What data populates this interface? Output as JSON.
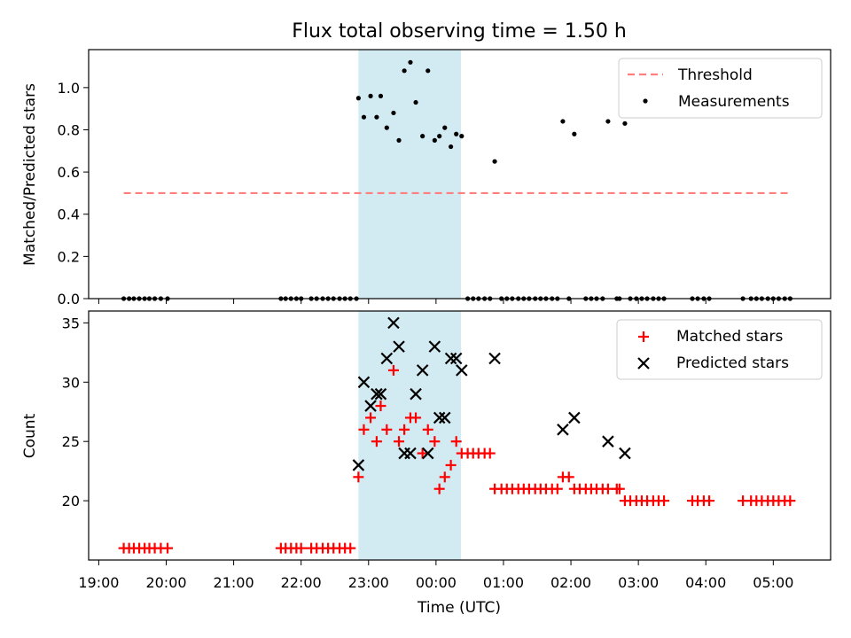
{
  "chart_data": {
    "title": "Flux total observing time = 1.50 h",
    "xlabel": "Time (UTC)",
    "x_ticks": [
      "19:00",
      "20:00",
      "21:00",
      "22:00",
      "23:00",
      "00:00",
      "01:00",
      "02:00",
      "03:00",
      "04:00",
      "05:00"
    ],
    "shaded_region": {
      "start_h": 22.85,
      "end_h": 24.37,
      "color": "#add8e6"
    },
    "panels": [
      {
        "type": "scatter",
        "ylabel": "Matched/Predicted stars",
        "ylim": [
          0,
          1.18
        ],
        "y_ticks": [
          "0.0",
          "0.2",
          "0.4",
          "0.6",
          "0.8",
          "1.0"
        ],
        "legend_position": "top-right",
        "legend": [
          {
            "label": "Threshold",
            "style": "dashed-line",
            "color": "#ff7f7f"
          },
          {
            "label": "Measurements",
            "style": "dot",
            "color": "#000000"
          }
        ],
        "threshold": {
          "value": 0.5,
          "x_start_h": 19.37,
          "x_end_h": 29.25
        },
        "series": [
          {
            "name": "Measurements",
            "points": [
              [
                19.37,
                0
              ],
              [
                19.45,
                0
              ],
              [
                19.52,
                0
              ],
              [
                19.6,
                0
              ],
              [
                19.68,
                0
              ],
              [
                19.75,
                0
              ],
              [
                19.83,
                0
              ],
              [
                19.92,
                0
              ],
              [
                20.02,
                0
              ],
              [
                21.7,
                0
              ],
              [
                21.77,
                0
              ],
              [
                21.85,
                0
              ],
              [
                21.93,
                0
              ],
              [
                22.0,
                0
              ],
              [
                22.15,
                0
              ],
              [
                22.23,
                0
              ],
              [
                22.32,
                0
              ],
              [
                22.4,
                0
              ],
              [
                22.48,
                0
              ],
              [
                22.57,
                0
              ],
              [
                22.65,
                0
              ],
              [
                22.73,
                0
              ],
              [
                22.82,
                0
              ],
              [
                22.85,
                0.95
              ],
              [
                22.93,
                0.86
              ],
              [
                23.03,
                0.96
              ],
              [
                23.12,
                0.86
              ],
              [
                23.18,
                0.96
              ],
              [
                23.27,
                0.81
              ],
              [
                23.37,
                0.88
              ],
              [
                23.45,
                0.75
              ],
              [
                23.53,
                1.08
              ],
              [
                23.62,
                1.12
              ],
              [
                23.7,
                0.93
              ],
              [
                23.8,
                0.77
              ],
              [
                23.88,
                1.08
              ],
              [
                23.98,
                0.75
              ],
              [
                24.05,
                0.77
              ],
              [
                24.13,
                0.81
              ],
              [
                24.22,
                0.72
              ],
              [
                24.3,
                0.78
              ],
              [
                24.38,
                0.77
              ],
              [
                24.47,
                0
              ],
              [
                24.55,
                0
              ],
              [
                24.63,
                0
              ],
              [
                24.72,
                0
              ],
              [
                24.8,
                0
              ],
              [
                24.87,
                0.65
              ],
              [
                24.97,
                0
              ],
              [
                25.05,
                0
              ],
              [
                25.13,
                0
              ],
              [
                25.22,
                0
              ],
              [
                25.3,
                0
              ],
              [
                25.38,
                0
              ],
              [
                25.47,
                0
              ],
              [
                25.55,
                0
              ],
              [
                25.63,
                0
              ],
              [
                25.72,
                0
              ],
              [
                25.8,
                0
              ],
              [
                25.88,
                0.84
              ],
              [
                25.97,
                0
              ],
              [
                26.05,
                0.78
              ],
              [
                26.22,
                0
              ],
              [
                26.3,
                0
              ],
              [
                26.38,
                0
              ],
              [
                26.47,
                0
              ],
              [
                26.55,
                0.84
              ],
              [
                26.68,
                0
              ],
              [
                26.72,
                0
              ],
              [
                26.8,
                0.83
              ],
              [
                26.88,
                0
              ],
              [
                26.97,
                0
              ],
              [
                27.05,
                0
              ],
              [
                27.13,
                0
              ],
              [
                27.22,
                0
              ],
              [
                27.3,
                0
              ],
              [
                27.38,
                0
              ],
              [
                27.8,
                0
              ],
              [
                27.88,
                0
              ],
              [
                27.97,
                0
              ],
              [
                28.05,
                0
              ],
              [
                28.55,
                0
              ],
              [
                28.67,
                0
              ],
              [
                28.75,
                0
              ],
              [
                28.83,
                0
              ],
              [
                28.92,
                0
              ],
              [
                29.0,
                0
              ],
              [
                29.08,
                0
              ],
              [
                29.17,
                0
              ],
              [
                29.25,
                0
              ]
            ]
          }
        ]
      },
      {
        "type": "scatter",
        "ylabel": "Count",
        "ylim": [
          15,
          36
        ],
        "y_ticks": [
          "20",
          "25",
          "30",
          "35"
        ],
        "legend_position": "top-right",
        "legend": [
          {
            "label": "Matched stars",
            "style": "plus",
            "color": "#ff0000"
          },
          {
            "label": "Predicted stars",
            "style": "x",
            "color": "#000000"
          }
        ],
        "series": [
          {
            "name": "Matched stars",
            "marker": "plus",
            "color": "#ff0000",
            "points": [
              [
                19.37,
                16
              ],
              [
                19.45,
                16
              ],
              [
                19.52,
                16
              ],
              [
                19.6,
                16
              ],
              [
                19.68,
                16
              ],
              [
                19.75,
                16
              ],
              [
                19.83,
                16
              ],
              [
                19.92,
                16
              ],
              [
                20.02,
                16
              ],
              [
                21.7,
                16
              ],
              [
                21.77,
                16
              ],
              [
                21.85,
                16
              ],
              [
                21.93,
                16
              ],
              [
                22.0,
                16
              ],
              [
                22.15,
                16
              ],
              [
                22.23,
                16
              ],
              [
                22.32,
                16
              ],
              [
                22.4,
                16
              ],
              [
                22.48,
                16
              ],
              [
                22.57,
                16
              ],
              [
                22.65,
                16
              ],
              [
                22.73,
                16
              ],
              [
                22.85,
                22
              ],
              [
                22.93,
                26
              ],
              [
                23.03,
                27
              ],
              [
                23.12,
                25
              ],
              [
                23.18,
                28
              ],
              [
                23.27,
                26
              ],
              [
                23.37,
                31
              ],
              [
                23.45,
                25
              ],
              [
                23.53,
                26
              ],
              [
                23.62,
                27
              ],
              [
                23.7,
                27
              ],
              [
                23.8,
                24
              ],
              [
                23.88,
                26
              ],
              [
                23.98,
                25
              ],
              [
                24.05,
                21
              ],
              [
                24.13,
                22
              ],
              [
                24.22,
                23
              ],
              [
                24.3,
                25
              ],
              [
                24.38,
                24
              ],
              [
                24.47,
                24
              ],
              [
                24.55,
                24
              ],
              [
                24.63,
                24
              ],
              [
                24.72,
                24
              ],
              [
                24.8,
                24
              ],
              [
                24.87,
                21
              ],
              [
                24.97,
                21
              ],
              [
                25.05,
                21
              ],
              [
                25.13,
                21
              ],
              [
                25.22,
                21
              ],
              [
                25.3,
                21
              ],
              [
                25.38,
                21
              ],
              [
                25.47,
                21
              ],
              [
                25.55,
                21
              ],
              [
                25.63,
                21
              ],
              [
                25.72,
                21
              ],
              [
                25.8,
                21
              ],
              [
                25.88,
                22
              ],
              [
                25.97,
                22
              ],
              [
                26.05,
                21
              ],
              [
                26.13,
                21
              ],
              [
                26.22,
                21
              ],
              [
                26.3,
                21
              ],
              [
                26.38,
                21
              ],
              [
                26.47,
                21
              ],
              [
                26.55,
                21
              ],
              [
                26.68,
                21
              ],
              [
                26.72,
                21
              ],
              [
                26.8,
                20
              ],
              [
                26.88,
                20
              ],
              [
                26.97,
                20
              ],
              [
                27.05,
                20
              ],
              [
                27.13,
                20
              ],
              [
                27.22,
                20
              ],
              [
                27.3,
                20
              ],
              [
                27.38,
                20
              ],
              [
                27.8,
                20
              ],
              [
                27.88,
                20
              ],
              [
                27.97,
                20
              ],
              [
                28.05,
                20
              ],
              [
                28.55,
                20
              ],
              [
                28.67,
                20
              ],
              [
                28.75,
                20
              ],
              [
                28.83,
                20
              ],
              [
                28.92,
                20
              ],
              [
                29.0,
                20
              ],
              [
                29.08,
                20
              ],
              [
                29.17,
                20
              ],
              [
                29.25,
                20
              ]
            ]
          },
          {
            "name": "Predicted stars",
            "marker": "x",
            "color": "#000000",
            "points": [
              [
                22.85,
                23
              ],
              [
                22.93,
                30
              ],
              [
                23.03,
                28
              ],
              [
                23.12,
                29
              ],
              [
                23.18,
                29
              ],
              [
                23.27,
                32
              ],
              [
                23.37,
                35
              ],
              [
                23.45,
                33
              ],
              [
                23.53,
                24
              ],
              [
                23.62,
                24
              ],
              [
                23.7,
                29
              ],
              [
                23.8,
                31
              ],
              [
                23.88,
                24
              ],
              [
                23.98,
                33
              ],
              [
                24.05,
                27
              ],
              [
                24.13,
                27
              ],
              [
                24.22,
                32
              ],
              [
                24.3,
                32
              ],
              [
                24.38,
                31
              ],
              [
                24.87,
                32
              ],
              [
                25.88,
                26
              ],
              [
                26.05,
                27
              ],
              [
                26.55,
                25
              ],
              [
                26.8,
                24
              ]
            ]
          }
        ]
      }
    ]
  }
}
